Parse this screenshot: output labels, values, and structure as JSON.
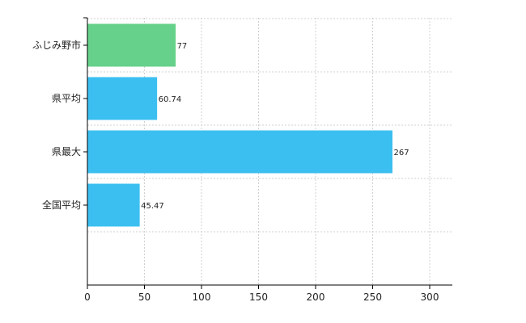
{
  "chart_data": {
    "type": "bar",
    "orientation": "horizontal",
    "categories": [
      "ふじみ野市",
      "県平均",
      "県最大",
      "全国平均"
    ],
    "values": [
      77,
      60.74,
      267,
      45.47
    ],
    "value_labels": [
      "77",
      "60.74",
      "267",
      "45.47"
    ],
    "bar_colors": [
      "#66d18a",
      "#3bbff0",
      "#3bbff0",
      "#3bbff0"
    ],
    "xlim": [
      0,
      320
    ],
    "x_ticks": [
      0,
      50,
      100,
      150,
      200,
      250,
      300
    ],
    "x_tick_labels": [
      "0",
      "50",
      "100",
      "150",
      "200",
      "250",
      "300"
    ],
    "grid": true,
    "title": "",
    "xlabel": "",
    "ylabel": ""
  }
}
